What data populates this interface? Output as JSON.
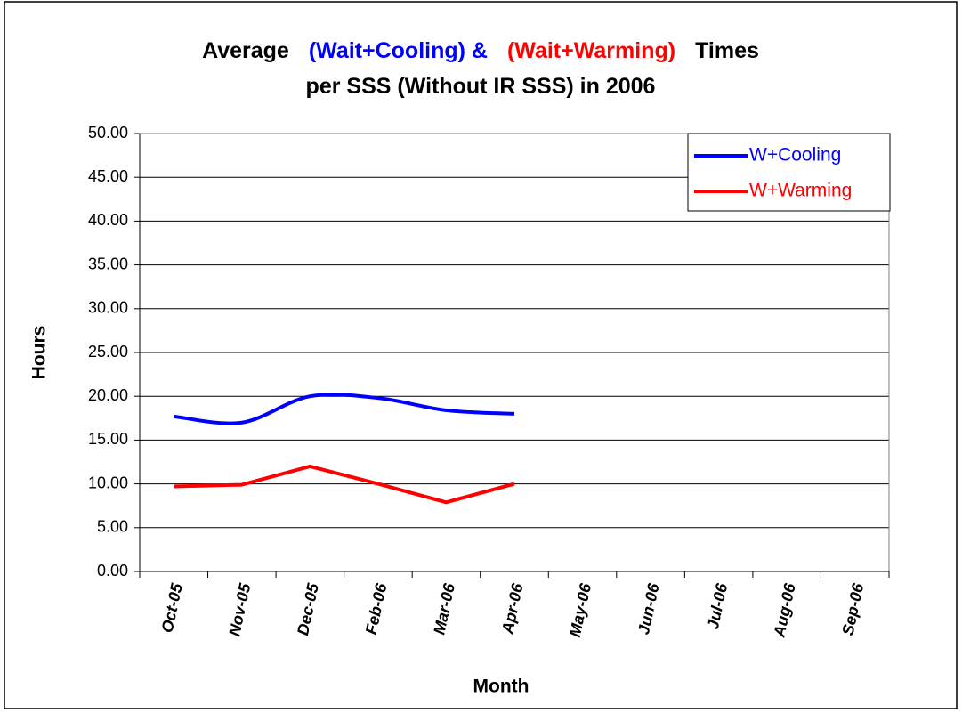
{
  "chart_data": {
    "type": "line",
    "title_lines": [
      [
        {
          "text": "Average",
          "color": "#000000"
        },
        {
          "text": "(Wait+Cooling) &",
          "color": "#0000ff"
        },
        {
          "text": "(Wait+Warming)",
          "color": "#ff0000"
        },
        {
          "text": "Times",
          "color": "#000000"
        }
      ],
      [
        {
          "text": "per SSS (Without IR SSS) in 2006",
          "color": "#000000"
        }
      ]
    ],
    "x_label": "Month",
    "y_label": "Hours",
    "categories": [
      "Oct-05",
      "Nov-05",
      "Dec-05",
      "Feb-06",
      "Mar-06",
      "Apr-06",
      "May-06",
      "Jun-06",
      "Jul-06",
      "Aug-06",
      "Sep-06"
    ],
    "series": [
      {
        "name": "W+Cooling",
        "color": "#0000ff",
        "values": [
          17.7,
          17.0,
          20.0,
          19.8,
          18.4,
          18.0,
          null,
          null,
          null,
          null,
          null
        ]
      },
      {
        "name": "W+Warming",
        "color": "#ff0000",
        "values": [
          9.7,
          9.9,
          12.0,
          10.0,
          7.9,
          10.0,
          null,
          null,
          null,
          null,
          null
        ]
      }
    ],
    "smooth": [
      true,
      false
    ],
    "ylim": [
      0,
      50
    ],
    "yticks": [
      {
        "value": 0,
        "label": "0.00"
      },
      {
        "value": 5,
        "label": "5.00"
      },
      {
        "value": 10,
        "label": "10.00"
      },
      {
        "value": 15,
        "label": "15.00"
      },
      {
        "value": 20,
        "label": "20.00"
      },
      {
        "value": 25,
        "label": "25.00"
      },
      {
        "value": 30,
        "label": "30.00"
      },
      {
        "value": 35,
        "label": "35.00"
      },
      {
        "value": 40,
        "label": "40.00"
      },
      {
        "value": 45,
        "label": "45.00"
      },
      {
        "value": 50,
        "label": "50.00"
      }
    ],
    "grid": true,
    "legend": "upper right"
  }
}
